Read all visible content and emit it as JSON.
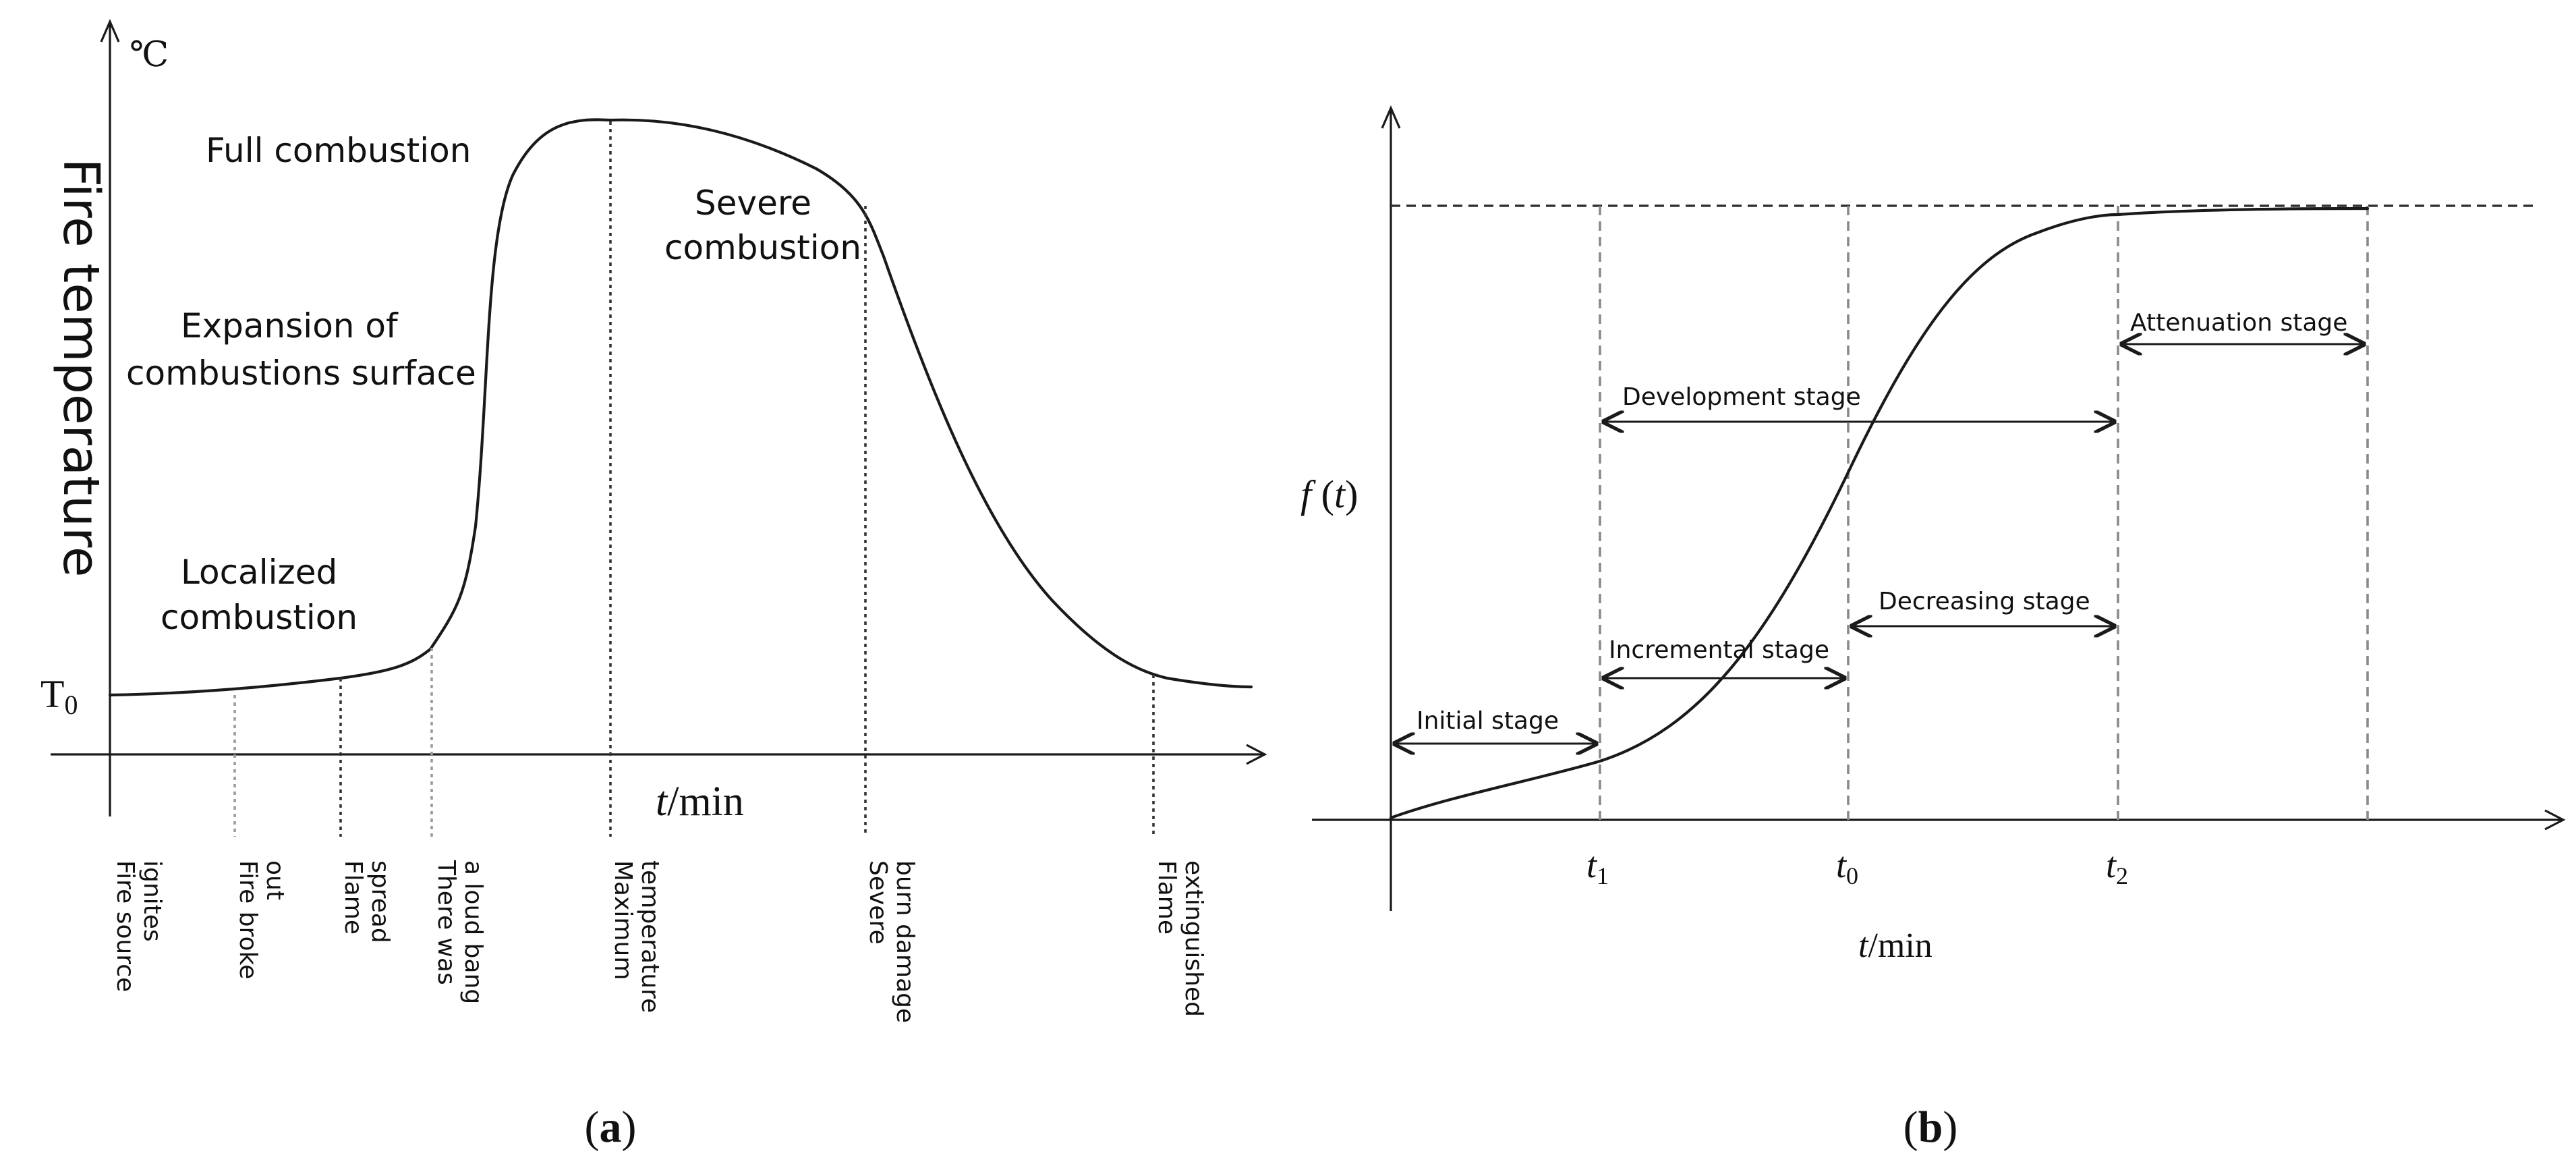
{
  "panel_a": {
    "caption_letter": "a",
    "y_axis_title": "Fire temperature",
    "y_unit": "℃",
    "t0_label": "T",
    "t0_sub": "0",
    "x_axis_label_t": "t",
    "x_axis_label_unit": "/min",
    "stage_labels": {
      "full_line1": "Full combustion",
      "expansion_line1": "Expansion of",
      "expansion_line2": "combustions surface",
      "localized_line1": "Localized",
      "localized_line2": "combustion",
      "severe_line1": "Severe",
      "severe_line2": "combustion"
    },
    "events": [
      {
        "line1": "Fire source",
        "line2": "ignites"
      },
      {
        "line1": "Fire broke",
        "line2": "out"
      },
      {
        "line1": "Flame",
        "line2": "spread"
      },
      {
        "line1": "There was",
        "line2": "a loud bang"
      },
      {
        "line1": "Maximum",
        "line2": "temperature"
      },
      {
        "line1": "Severe",
        "line2": "burn damage"
      },
      {
        "line1": "Flame",
        "line2": "extinguished"
      }
    ]
  },
  "panel_b": {
    "caption_letter": "b",
    "y_label_f": "f",
    "y_label_t": "t",
    "x_axis_label_t": "t",
    "x_axis_label_unit": "/min",
    "ticks": {
      "t1": "t",
      "t1_sub": "1",
      "t0": "t",
      "t0_sub": "0",
      "t2": "t",
      "t2_sub": "2"
    },
    "stages": {
      "initial": "Initial stage",
      "incremental": "Incremental stage",
      "decreasing": "Decreasing stage",
      "development": "Development stage",
      "attenuation": "Attenuation stage"
    }
  }
}
